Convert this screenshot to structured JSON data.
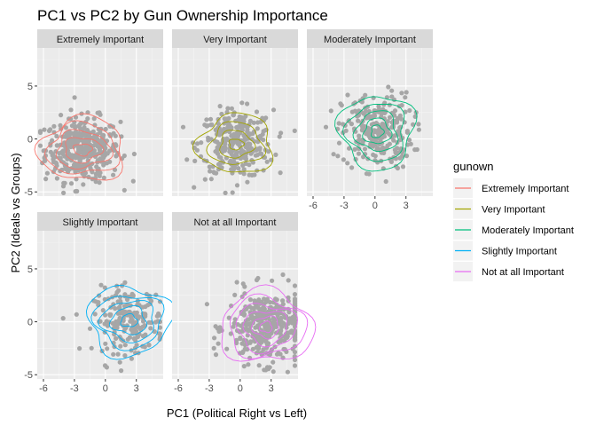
{
  "chart_data": {
    "type": "scatter",
    "title": "PC1 vs PC2 by Gun Ownership Importance",
    "xlabel": "PC1 (Political Right vs Left)",
    "ylabel": "PC2 (Ideals vs Groups)",
    "xlim": [
      -6.6,
      5.6
    ],
    "ylim": [
      -5.4,
      8.6
    ],
    "x_ticks": [
      -6,
      -3,
      0,
      3
    ],
    "y_ticks": [
      -5,
      0,
      5
    ],
    "grid": true,
    "point_color": "#A6A6A6",
    "legend": {
      "title": "gunown",
      "position": "right",
      "entries": [
        {
          "label": "Extremely Important",
          "color": "#F8766D"
        },
        {
          "label": "Very Important",
          "color": "#A3A500"
        },
        {
          "label": "Moderately Important",
          "color": "#00BF7D"
        },
        {
          "label": "Slightly Important",
          "color": "#00B0F6"
        },
        {
          "label": "Not at all Important",
          "color": "#E76BF3"
        }
      ]
    },
    "panels": [
      {
        "label": "Extremely Important",
        "color": "#F8766D",
        "center": [
          -2.2,
          -1.0
        ],
        "spread": [
          1.8,
          1.5
        ],
        "n": 380,
        "contour_radii": [
          [
            0.9,
            0.55
          ],
          [
            1.8,
            1.15
          ],
          [
            2.6,
            1.75
          ],
          [
            3.4,
            2.4
          ],
          [
            4.1,
            3.0
          ]
        ]
      },
      {
        "label": "Very Important",
        "color": "#A3A500",
        "center": [
          -0.4,
          -0.5
        ],
        "spread": [
          1.8,
          1.6
        ],
        "n": 300,
        "contour_radii": [
          [
            0.7,
            0.5
          ],
          [
            1.6,
            1.3
          ],
          [
            2.6,
            2.0
          ],
          [
            3.6,
            2.8
          ]
        ]
      },
      {
        "label": "Moderately Important",
        "color": "#00BF7D",
        "center": [
          0.2,
          0.7
        ],
        "spread": [
          1.7,
          1.8
        ],
        "n": 260,
        "contour_radii": [
          [
            0.6,
            0.6
          ],
          [
            1.3,
            1.2
          ],
          [
            2.0,
            1.9
          ],
          [
            2.8,
            2.7
          ],
          [
            3.6,
            3.5
          ]
        ]
      },
      {
        "label": "Slightly Important",
        "color": "#00B0F6",
        "center": [
          2.3,
          0.1
        ],
        "spread": [
          1.7,
          1.5
        ],
        "n": 200,
        "contour_radii": [
          [
            0.8,
            0.6
          ],
          [
            1.7,
            1.3
          ],
          [
            2.6,
            1.9
          ],
          [
            3.3,
            2.5
          ],
          [
            4.0,
            3.3
          ]
        ]
      },
      {
        "label": "Not at all Important",
        "color": "#E76BF3",
        "center": [
          2.5,
          -0.5
        ],
        "spread": [
          1.9,
          1.7
        ],
        "n": 360,
        "contour_radii": [
          [
            0.6,
            0.5
          ],
          [
            1.3,
            1.0
          ],
          [
            2.1,
            1.6
          ],
          [
            2.9,
            2.2
          ],
          [
            3.7,
            2.8
          ],
          [
            4.5,
            3.4
          ]
        ]
      }
    ]
  }
}
